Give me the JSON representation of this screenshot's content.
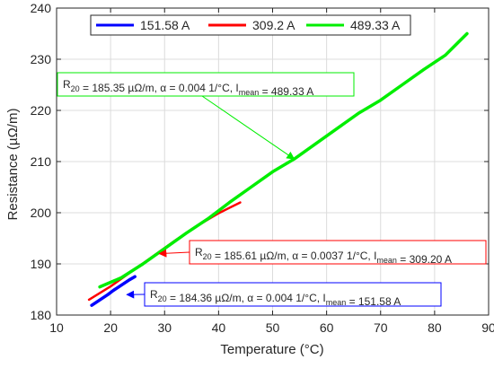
{
  "chart_data": {
    "type": "line",
    "xlabel": "Temperature (°C)",
    "ylabel": "Resistance (µΩ/m)",
    "xlim": [
      10,
      90
    ],
    "ylim": [
      180,
      240
    ],
    "xticks": [
      10,
      20,
      30,
      40,
      50,
      60,
      70,
      80,
      90
    ],
    "yticks": [
      180,
      190,
      200,
      210,
      220,
      230,
      240
    ],
    "grid": true,
    "legend_position": "top",
    "series": [
      {
        "name": "151.58 A",
        "color": "#0000ff",
        "x": [
          16.5,
          17.5,
          18.5,
          19.5,
          20.5,
          21.5,
          22.5,
          23.5,
          24.5
        ],
        "y": [
          181.9,
          182.6,
          183.3,
          184.0,
          184.8,
          185.5,
          186.2,
          186.9,
          187.5
        ]
      },
      {
        "name": "309.2 A",
        "color": "#ff0000",
        "x": [
          16,
          20,
          24,
          28,
          32,
          36,
          40,
          44
        ],
        "y": [
          183.0,
          185.6,
          188.6,
          191.6,
          194.6,
          197.4,
          199.9,
          202.0
        ]
      },
      {
        "name": "489.33 A",
        "color": "#00ee00",
        "x": [
          18,
          22,
          26,
          30,
          34,
          38,
          42,
          46,
          50,
          54,
          58,
          62,
          66,
          70,
          74,
          78,
          82,
          86
        ],
        "y": [
          185.5,
          187.3,
          190.0,
          193.0,
          196.0,
          198.8,
          202.0,
          205.0,
          208.0,
          210.5,
          213.5,
          216.5,
          219.5,
          222.0,
          225.0,
          228.0,
          230.8,
          235.0
        ]
      }
    ],
    "annotations": [
      {
        "color": "#00ee00",
        "r20": "R",
        "r20_sub": "20",
        "text_mid": " = 185.35 µΩ/m, α = 0.004 1/°C, I",
        "i_sub": "mean",
        "text_end": " = 489.33 A",
        "arrow_to": [
          54,
          210.5
        ]
      },
      {
        "color": "#ff0000",
        "r20": "R",
        "r20_sub": "20",
        "text_mid": " = 185.61 µΩ/m, α = 0.0037 1/°C, I",
        "i_sub": "mean",
        "text_end": " = 309.20 A",
        "arrow_to": [
          29,
          192
        ]
      },
      {
        "color": "#0000ff",
        "r20": "R",
        "r20_sub": "20",
        "text_mid": " = 184.36 µΩ/m, α = 0.004 1/°C, I",
        "i_sub": "mean",
        "text_end": " = 151.58 A",
        "arrow_to": [
          23,
          184
        ]
      }
    ]
  }
}
